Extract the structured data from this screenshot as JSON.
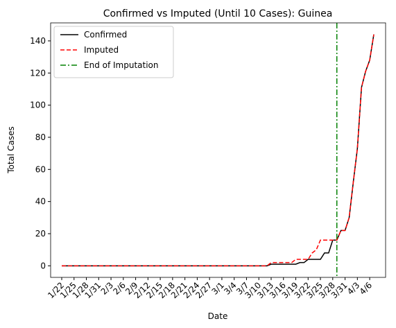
{
  "chart_data": {
    "type": "line",
    "title": "Confirmed vs Imputed (Until 10 Cases): Guinea",
    "x_label": "Date",
    "y_label": "Total Cases",
    "categories": [
      "1/22",
      null,
      null,
      "1/25",
      null,
      null,
      "1/28",
      null,
      null,
      "1/31",
      null,
      null,
      "2/3",
      null,
      null,
      "2/6",
      null,
      null,
      "2/9",
      null,
      null,
      "2/12",
      null,
      null,
      "2/15",
      null,
      null,
      "2/18",
      null,
      null,
      "2/21",
      null,
      null,
      "2/24",
      null,
      null,
      "2/27",
      null,
      null,
      "3/1",
      null,
      null,
      "3/4",
      null,
      null,
      "3/7",
      null,
      null,
      "3/10",
      null,
      null,
      "3/13",
      null,
      null,
      "3/16",
      null,
      null,
      "3/19",
      null,
      null,
      "3/22",
      null,
      null,
      "3/25",
      null,
      null,
      "3/28",
      null,
      null,
      "3/31",
      null,
      null,
      "4/3",
      null,
      null,
      "4/6",
      null
    ],
    "series": [
      {
        "name": "Confirmed",
        "color": "#000000",
        "dash": "solid",
        "values": [
          0,
          0,
          0,
          0,
          0,
          0,
          0,
          0,
          0,
          0,
          0,
          0,
          0,
          0,
          0,
          0,
          0,
          0,
          0,
          0,
          0,
          0,
          0,
          0,
          0,
          0,
          0,
          0,
          0,
          0,
          0,
          0,
          0,
          0,
          0,
          0,
          0,
          0,
          0,
          0,
          0,
          0,
          0,
          0,
          0,
          0,
          0,
          0,
          0,
          0,
          0,
          1,
          1,
          1,
          1,
          1,
          1,
          1,
          2,
          2,
          4,
          4,
          4,
          4,
          8,
          8,
          16,
          16,
          22,
          22,
          30,
          52,
          73,
          111,
          121,
          128,
          144
        ]
      },
      {
        "name": "Imputed",
        "color": "#ff0000",
        "dash": "dashed",
        "values": [
          0,
          0,
          0,
          0,
          0,
          0,
          0,
          0,
          0,
          0,
          0,
          0,
          0,
          0,
          0,
          0,
          0,
          0,
          0,
          0,
          0,
          0,
          0,
          0,
          0,
          0,
          0,
          0,
          0,
          0,
          0,
          0,
          0,
          0,
          0,
          0,
          0,
          0,
          0,
          0,
          0,
          0,
          0,
          0,
          0,
          0,
          0,
          0,
          0,
          0,
          0,
          2,
          2,
          2,
          2,
          2,
          2,
          4,
          4,
          4,
          4,
          8,
          10,
          16,
          16,
          16,
          16,
          16,
          22,
          22,
          30,
          52,
          73,
          111,
          121,
          128,
          144
        ]
      }
    ],
    "vline": {
      "name": "End of Imputation",
      "color": "#008000",
      "dash": "dashdot",
      "index": 67
    },
    "ylim": [
      -7.2,
      151.2
    ],
    "yticks": [
      0,
      20,
      40,
      60,
      80,
      100,
      120,
      140
    ],
    "legend": "upper left",
    "grid": false
  }
}
